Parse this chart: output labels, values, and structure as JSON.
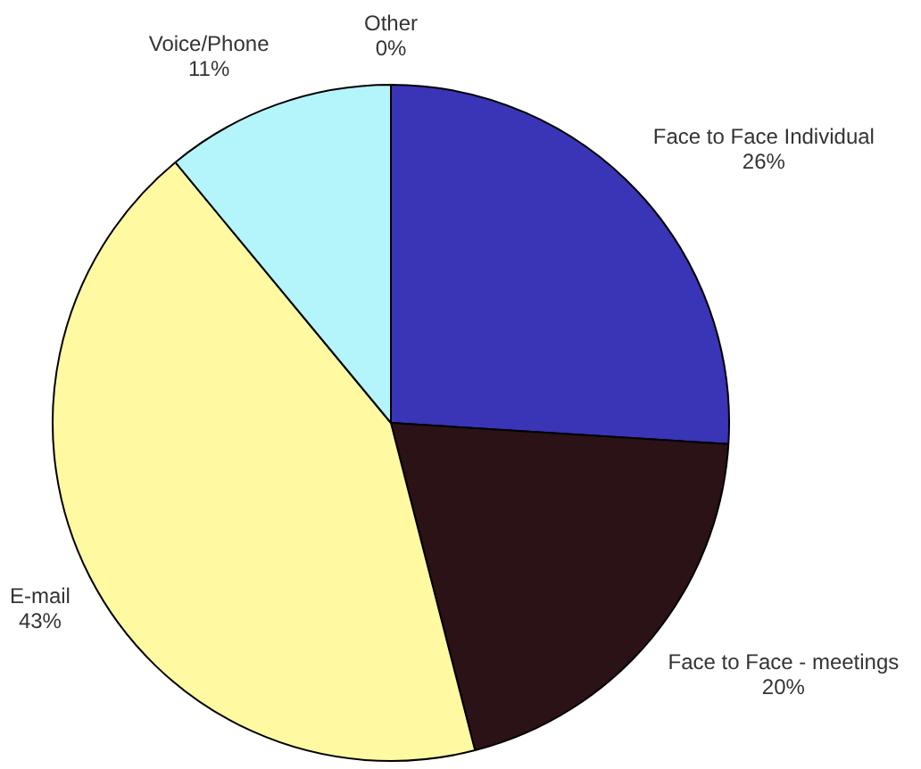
{
  "chart_data": {
    "type": "pie",
    "categories": [
      "Face to Face Individual",
      "Face to Face - meetings",
      "E-mail",
      "Voice/Phone",
      "Other"
    ],
    "values": [
      26,
      20,
      43,
      11,
      0
    ],
    "value_labels": [
      "26%",
      "20%",
      "43%",
      "11%",
      "0%"
    ],
    "colors": [
      "#3a34b6",
      "#2b1217",
      "#fffaa2",
      "#b4f5fb",
      "#8080c0"
    ]
  }
}
